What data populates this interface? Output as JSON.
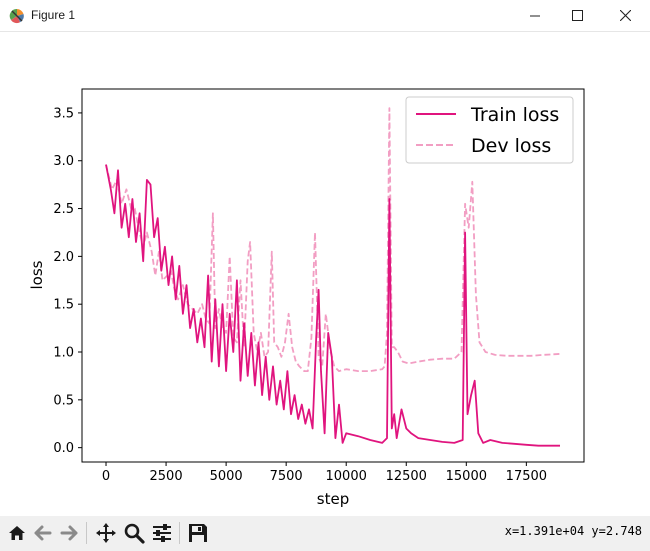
{
  "window": {
    "title": "Figure 1",
    "app_icon": "matplotlib-icon",
    "controls": [
      "minimize-icon",
      "maximize-icon",
      "close-icon"
    ]
  },
  "toolbar": {
    "icons": [
      "home-icon",
      "back-arrow-icon",
      "forward-arrow-icon",
      "pan-icon",
      "zoom-icon",
      "configure-subplots-icon",
      "save-icon"
    ],
    "coordinates": "x=1.391e+04  y=2.748"
  },
  "chart_data": {
    "type": "line",
    "xlabel": "step",
    "ylabel": "loss",
    "xlim": [
      -1000,
      19900
    ],
    "ylim": [
      -0.15,
      3.75
    ],
    "xticks": [
      0,
      2500,
      5000,
      7500,
      10000,
      12500,
      15000,
      17500
    ],
    "xtick_labels": [
      "0",
      "2500",
      "5000",
      "7500",
      "10000",
      "12500",
      "15000",
      "17500"
    ],
    "yticks": [
      0.0,
      0.5,
      1.0,
      1.5,
      2.0,
      2.5,
      3.0,
      3.5
    ],
    "ytick_labels": [
      "0.0",
      "0.5",
      "1.0",
      "1.5",
      "2.0",
      "2.5",
      "3.0",
      "3.5"
    ],
    "grid": false,
    "legend": "top-right",
    "series": [
      {
        "name": "Train loss",
        "color": "#e0147e",
        "style": "solid",
        "points": [
          [
            0,
            2.96
          ],
          [
            200,
            2.7
          ],
          [
            350,
            2.45
          ],
          [
            500,
            2.9
          ],
          [
            650,
            2.3
          ],
          [
            800,
            2.55
          ],
          [
            950,
            2.2
          ],
          [
            1100,
            2.6
          ],
          [
            1250,
            2.15
          ],
          [
            1400,
            2.45
          ],
          [
            1550,
            1.95
          ],
          [
            1700,
            2.8
          ],
          [
            1850,
            2.75
          ],
          [
            2000,
            2.2
          ],
          [
            2150,
            2.4
          ],
          [
            2300,
            1.85
          ],
          [
            2450,
            2.1
          ],
          [
            2600,
            1.7
          ],
          [
            2750,
            2.0
          ],
          [
            2900,
            1.55
          ],
          [
            3050,
            1.9
          ],
          [
            3200,
            1.4
          ],
          [
            3350,
            1.7
          ],
          [
            3500,
            1.25
          ],
          [
            3650,
            1.45
          ],
          [
            3800,
            1.1
          ],
          [
            3950,
            1.35
          ],
          [
            4100,
            1.05
          ],
          [
            4250,
            1.8
          ],
          [
            4400,
            0.9
          ],
          [
            4550,
            1.55
          ],
          [
            4700,
            0.85
          ],
          [
            4850,
            1.5
          ],
          [
            5000,
            0.8
          ],
          [
            5150,
            1.4
          ],
          [
            5300,
            1.0
          ],
          [
            5450,
            1.75
          ],
          [
            5600,
            0.7
          ],
          [
            5750,
            1.3
          ],
          [
            5900,
            0.75
          ],
          [
            6050,
            1.2
          ],
          [
            6200,
            0.65
          ],
          [
            6350,
            1.1
          ],
          [
            6500,
            0.55
          ],
          [
            6650,
            0.95
          ],
          [
            6800,
            0.5
          ],
          [
            6950,
            0.85
          ],
          [
            7100,
            0.45
          ],
          [
            7250,
            0.7
          ],
          [
            7400,
            0.4
          ],
          [
            7550,
            0.8
          ],
          [
            7700,
            0.35
          ],
          [
            7850,
            0.55
          ],
          [
            8000,
            0.3
          ],
          [
            8150,
            0.45
          ],
          [
            8300,
            0.25
          ],
          [
            8450,
            0.4
          ],
          [
            8600,
            0.2
          ],
          [
            8750,
            1.15
          ],
          [
            8850,
            1.65
          ],
          [
            8950,
            0.8
          ],
          [
            9100,
            0.15
          ],
          [
            9250,
            1.2
          ],
          [
            9400,
            0.95
          ],
          [
            9550,
            0.1
          ],
          [
            9700,
            0.45
          ],
          [
            9850,
            0.05
          ],
          [
            10000,
            0.15
          ],
          [
            10500,
            0.12
          ],
          [
            11000,
            0.08
          ],
          [
            11500,
            0.05
          ],
          [
            11700,
            0.1
          ],
          [
            11800,
            2.6
          ],
          [
            11900,
            0.2
          ],
          [
            12000,
            0.35
          ],
          [
            12100,
            0.1
          ],
          [
            12300,
            0.4
          ],
          [
            12500,
            0.2
          ],
          [
            12700,
            0.15
          ],
          [
            13000,
            0.1
          ],
          [
            13500,
            0.08
          ],
          [
            14000,
            0.06
          ],
          [
            14500,
            0.05
          ],
          [
            14850,
            0.08
          ],
          [
            14950,
            2.25
          ],
          [
            15050,
            0.35
          ],
          [
            15200,
            0.55
          ],
          [
            15350,
            0.7
          ],
          [
            15500,
            0.15
          ],
          [
            15700,
            0.05
          ],
          [
            16000,
            0.08
          ],
          [
            16500,
            0.05
          ],
          [
            17000,
            0.04
          ],
          [
            17500,
            0.03
          ],
          [
            18000,
            0.02
          ],
          [
            18500,
            0.02
          ],
          [
            18900,
            0.02
          ]
        ]
      },
      {
        "name": "Dev loss",
        "color": "#f29ec3",
        "style": "dashed",
        "points": [
          [
            0,
            2.96
          ],
          [
            250,
            2.7
          ],
          [
            450,
            2.8
          ],
          [
            650,
            2.55
          ],
          [
            850,
            2.7
          ],
          [
            1050,
            2.5
          ],
          [
            1200,
            2.5
          ],
          [
            1350,
            2.3
          ],
          [
            1550,
            2.1
          ],
          [
            1700,
            2.25
          ],
          [
            1900,
            2.05
          ],
          [
            2050,
            1.8
          ],
          [
            2200,
            2.05
          ],
          [
            2350,
            1.75
          ],
          [
            2550,
            1.8
          ],
          [
            2700,
            1.85
          ],
          [
            2850,
            1.65
          ],
          [
            3000,
            1.55
          ],
          [
            3200,
            1.7
          ],
          [
            3400,
            1.5
          ],
          [
            3600,
            1.45
          ],
          [
            3800,
            1.4
          ],
          [
            4000,
            1.5
          ],
          [
            4150,
            1.35
          ],
          [
            4300,
            1.3
          ],
          [
            4450,
            2.45
          ],
          [
            4550,
            1.25
          ],
          [
            4700,
            1.45
          ],
          [
            4850,
            1.25
          ],
          [
            5000,
            1.2
          ],
          [
            5150,
            2.0
          ],
          [
            5300,
            1.15
          ],
          [
            5450,
            1.1
          ],
          [
            5600,
            1.75
          ],
          [
            5750,
            1.05
          ],
          [
            5900,
            1.95
          ],
          [
            6000,
            2.15
          ],
          [
            6150,
            1.2
          ],
          [
            6300,
            1.0
          ],
          [
            6450,
            1.2
          ],
          [
            6600,
            0.95
          ],
          [
            6750,
            1.0
          ],
          [
            6900,
            2.05
          ],
          [
            7000,
            1.1
          ],
          [
            7150,
            1.05
          ],
          [
            7300,
            0.95
          ],
          [
            7450,
            1.1
          ],
          [
            7600,
            1.4
          ],
          [
            7750,
            1.05
          ],
          [
            7900,
            0.9
          ],
          [
            8050,
            0.85
          ],
          [
            8250,
            0.8
          ],
          [
            8400,
            0.8
          ],
          [
            8550,
            1.15
          ],
          [
            8700,
            2.25
          ],
          [
            8850,
            0.95
          ],
          [
            9000,
            0.85
          ],
          [
            9150,
            1.4
          ],
          [
            9350,
            1.0
          ],
          [
            9500,
            0.85
          ],
          [
            9700,
            0.8
          ],
          [
            10000,
            0.82
          ],
          [
            10500,
            0.8
          ],
          [
            11000,
            0.8
          ],
          [
            11500,
            0.82
          ],
          [
            11600,
            0.85
          ],
          [
            11700,
            1.2
          ],
          [
            11800,
            3.55
          ],
          [
            11900,
            1.05
          ],
          [
            12000,
            1.05
          ],
          [
            12150,
            1.0
          ],
          [
            12350,
            0.9
          ],
          [
            12600,
            0.88
          ],
          [
            13000,
            0.9
          ],
          [
            13500,
            0.92
          ],
          [
            14000,
            0.93
          ],
          [
            14500,
            0.93
          ],
          [
            14800,
            1.0
          ],
          [
            14950,
            2.55
          ],
          [
            15100,
            2.3
          ],
          [
            15250,
            2.78
          ],
          [
            15400,
            1.6
          ],
          [
            15550,
            1.1
          ],
          [
            15800,
            1.0
          ],
          [
            16200,
            0.97
          ],
          [
            16700,
            0.96
          ],
          [
            17200,
            0.96
          ],
          [
            17700,
            0.96
          ],
          [
            18200,
            0.97
          ],
          [
            18900,
            0.98
          ]
        ]
      }
    ]
  }
}
